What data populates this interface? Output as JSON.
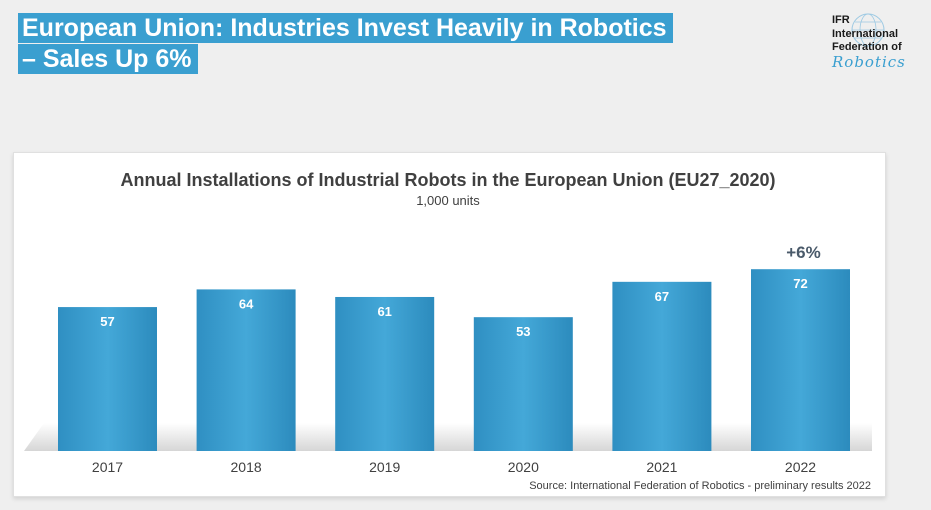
{
  "slide": {
    "title_line1": "European Union: Industries Invest Heavily in Robotics",
    "title_line2": "– Sales Up 6%"
  },
  "logo": {
    "abbr": "IFR",
    "line2": "International",
    "line3": "Federation of",
    "script": "Robotics"
  },
  "colors": {
    "accent": "#3a9fd0",
    "bar": "#3a9fd0",
    "text_dark": "#404040"
  },
  "chart_data": {
    "type": "bar",
    "title": "Annual Installations of Industrial Robots in the European Union (EU27_2020)",
    "subtitle": "1,000 units",
    "categories": [
      "2017",
      "2018",
      "2019",
      "2020",
      "2021",
      "2022"
    ],
    "values": [
      57,
      64,
      61,
      53,
      67,
      72
    ],
    "ylim": [
      0,
      80
    ],
    "annotation": {
      "text": "+6%",
      "category": "2022"
    },
    "source": "Source: International Federation of Robotics - preliminary results 2022",
    "xlabel": "",
    "ylabel": ""
  }
}
